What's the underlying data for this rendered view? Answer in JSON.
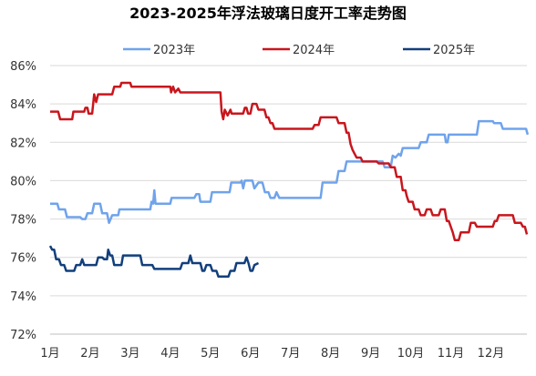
{
  "chart_data": {
    "type": "line",
    "title": "2023-2025年浮法玻璃日度开工率走势图",
    "xlabel": "",
    "ylabel": "",
    "x_categories": [
      "1月",
      "2月",
      "3月",
      "4月",
      "5月",
      "6月",
      "7月",
      "8月",
      "9月",
      "10月",
      "11月",
      "12月"
    ],
    "y_ticks": [
      "72%",
      "74%",
      "76%",
      "78%",
      "80%",
      "82%",
      "84%",
      "86%"
    ],
    "ylim": [
      72,
      86
    ],
    "xlim": [
      1,
      12.9
    ],
    "grid": "horizontal",
    "legend_position": "top",
    "series": [
      {
        "name": "2023年",
        "color": "#6fa3ec",
        "points": [
          [
            1.0,
            78.8
          ],
          [
            1.18,
            78.8
          ],
          [
            1.22,
            78.5
          ],
          [
            1.37,
            78.5
          ],
          [
            1.42,
            78.1
          ],
          [
            1.75,
            78.1
          ],
          [
            1.8,
            78.0
          ],
          [
            1.88,
            78.0
          ],
          [
            1.93,
            78.3
          ],
          [
            2.05,
            78.3
          ],
          [
            2.1,
            78.8
          ],
          [
            2.25,
            78.8
          ],
          [
            2.3,
            78.3
          ],
          [
            2.42,
            78.3
          ],
          [
            2.47,
            77.8
          ],
          [
            2.55,
            78.2
          ],
          [
            2.7,
            78.2
          ],
          [
            2.73,
            78.5
          ],
          [
            3.5,
            78.5
          ],
          [
            3.53,
            78.9
          ],
          [
            3.57,
            78.8
          ],
          [
            3.6,
            79.5
          ],
          [
            3.63,
            78.8
          ],
          [
            4.0,
            78.8
          ],
          [
            4.03,
            79.1
          ],
          [
            4.6,
            79.1
          ],
          [
            4.65,
            79.3
          ],
          [
            4.72,
            79.3
          ],
          [
            4.75,
            78.9
          ],
          [
            5.0,
            78.9
          ],
          [
            5.04,
            79.4
          ],
          [
            5.48,
            79.4
          ],
          [
            5.52,
            79.9
          ],
          [
            5.75,
            79.9
          ],
          [
            5.78,
            80.0
          ],
          [
            5.82,
            79.6
          ],
          [
            5.86,
            80.0
          ],
          [
            6.05,
            80.0
          ],
          [
            6.1,
            79.6
          ],
          [
            6.2,
            79.9
          ],
          [
            6.3,
            79.9
          ],
          [
            6.36,
            79.4
          ],
          [
            6.45,
            79.4
          ],
          [
            6.5,
            79.1
          ],
          [
            6.6,
            79.1
          ],
          [
            6.65,
            79.4
          ],
          [
            6.72,
            79.1
          ],
          [
            7.75,
            79.1
          ],
          [
            7.8,
            79.9
          ],
          [
            8.15,
            79.9
          ],
          [
            8.2,
            80.5
          ],
          [
            8.35,
            80.5
          ],
          [
            8.4,
            81.0
          ],
          [
            9.3,
            81.0
          ],
          [
            9.35,
            80.7
          ],
          [
            9.5,
            80.7
          ],
          [
            9.55,
            81.3
          ],
          [
            9.62,
            81.2
          ],
          [
            9.7,
            81.4
          ],
          [
            9.75,
            81.3
          ],
          [
            9.8,
            81.7
          ],
          [
            10.2,
            81.7
          ],
          [
            10.25,
            82.0
          ],
          [
            10.4,
            82.0
          ],
          [
            10.45,
            82.4
          ],
          [
            10.85,
            82.4
          ],
          [
            10.88,
            82.0
          ],
          [
            10.92,
            82.0
          ],
          [
            10.95,
            82.4
          ],
          [
            11.65,
            82.4
          ],
          [
            11.7,
            83.1
          ],
          [
            12.05,
            83.1
          ],
          [
            12.08,
            83.0
          ],
          [
            12.25,
            83.0
          ],
          [
            12.3,
            82.7
          ],
          [
            12.88,
            82.7
          ],
          [
            12.92,
            82.4
          ]
        ]
      },
      {
        "name": "2024年",
        "color": "#c8161d",
        "points": [
          [
            1.0,
            83.6
          ],
          [
            1.2,
            83.6
          ],
          [
            1.25,
            83.2
          ],
          [
            1.55,
            83.2
          ],
          [
            1.58,
            83.6
          ],
          [
            1.85,
            83.6
          ],
          [
            1.88,
            83.8
          ],
          [
            1.93,
            83.8
          ],
          [
            1.96,
            83.5
          ],
          [
            2.05,
            83.5
          ],
          [
            2.1,
            84.5
          ],
          [
            2.15,
            84.1
          ],
          [
            2.2,
            84.5
          ],
          [
            2.55,
            84.5
          ],
          [
            2.6,
            84.9
          ],
          [
            2.75,
            84.9
          ],
          [
            2.78,
            85.1
          ],
          [
            3.0,
            85.1
          ],
          [
            3.03,
            84.9
          ],
          [
            4.0,
            84.9
          ],
          [
            4.02,
            84.6
          ],
          [
            4.07,
            84.9
          ],
          [
            4.12,
            84.6
          ],
          [
            4.2,
            84.8
          ],
          [
            4.25,
            84.6
          ],
          [
            5.25,
            84.6
          ],
          [
            5.28,
            83.6
          ],
          [
            5.32,
            83.2
          ],
          [
            5.36,
            83.7
          ],
          [
            5.43,
            83.4
          ],
          [
            5.5,
            83.7
          ],
          [
            5.53,
            83.5
          ],
          [
            5.82,
            83.5
          ],
          [
            5.86,
            83.8
          ],
          [
            5.9,
            83.8
          ],
          [
            5.94,
            83.5
          ],
          [
            6.0,
            83.5
          ],
          [
            6.05,
            84.0
          ],
          [
            6.15,
            84.0
          ],
          [
            6.2,
            83.7
          ],
          [
            6.35,
            83.7
          ],
          [
            6.4,
            83.3
          ],
          [
            6.45,
            83.3
          ],
          [
            6.5,
            83.0
          ],
          [
            6.55,
            83.0
          ],
          [
            6.6,
            82.7
          ],
          [
            7.55,
            82.7
          ],
          [
            7.6,
            82.9
          ],
          [
            7.7,
            82.9
          ],
          [
            7.75,
            83.3
          ],
          [
            8.15,
            83.3
          ],
          [
            8.2,
            83.0
          ],
          [
            8.35,
            83.0
          ],
          [
            8.4,
            82.5
          ],
          [
            8.45,
            82.5
          ],
          [
            8.5,
            81.9
          ],
          [
            8.55,
            81.6
          ],
          [
            8.6,
            81.4
          ],
          [
            8.65,
            81.2
          ],
          [
            8.75,
            81.2
          ],
          [
            8.8,
            81.0
          ],
          [
            9.15,
            81.0
          ],
          [
            9.2,
            80.9
          ],
          [
            9.45,
            80.9
          ],
          [
            9.5,
            80.7
          ],
          [
            9.6,
            80.7
          ],
          [
            9.65,
            80.2
          ],
          [
            9.75,
            80.2
          ],
          [
            9.8,
            79.5
          ],
          [
            9.87,
            79.5
          ],
          [
            9.9,
            79.2
          ],
          [
            9.95,
            78.9
          ],
          [
            10.05,
            78.9
          ],
          [
            10.1,
            78.5
          ],
          [
            10.2,
            78.5
          ],
          [
            10.25,
            78.2
          ],
          [
            10.35,
            78.2
          ],
          [
            10.4,
            78.5
          ],
          [
            10.5,
            78.5
          ],
          [
            10.55,
            78.2
          ],
          [
            10.7,
            78.2
          ],
          [
            10.75,
            78.5
          ],
          [
            10.85,
            78.5
          ],
          [
            10.9,
            77.9
          ],
          [
            10.95,
            77.9
          ],
          [
            11.0,
            77.6
          ],
          [
            11.05,
            77.3
          ],
          [
            11.1,
            76.9
          ],
          [
            11.2,
            76.9
          ],
          [
            11.25,
            77.3
          ],
          [
            11.45,
            77.3
          ],
          [
            11.5,
            77.8
          ],
          [
            11.6,
            77.8
          ],
          [
            11.65,
            77.6
          ],
          [
            12.05,
            77.6
          ],
          [
            12.1,
            77.9
          ],
          [
            12.15,
            77.9
          ],
          [
            12.2,
            78.2
          ],
          [
            12.55,
            78.2
          ],
          [
            12.6,
            77.8
          ],
          [
            12.75,
            77.8
          ],
          [
            12.8,
            77.6
          ],
          [
            12.85,
            77.6
          ],
          [
            12.9,
            77.2
          ]
        ]
      },
      {
        "name": "2025年",
        "color": "#123f7c",
        "points": [
          [
            1.0,
            76.6
          ],
          [
            1.05,
            76.4
          ],
          [
            1.1,
            76.4
          ],
          [
            1.15,
            75.9
          ],
          [
            1.22,
            75.9
          ],
          [
            1.27,
            75.6
          ],
          [
            1.35,
            75.6
          ],
          [
            1.4,
            75.3
          ],
          [
            1.6,
            75.3
          ],
          [
            1.65,
            75.6
          ],
          [
            1.75,
            75.6
          ],
          [
            1.8,
            75.9
          ],
          [
            1.85,
            75.6
          ],
          [
            2.15,
            75.6
          ],
          [
            2.2,
            76.0
          ],
          [
            2.3,
            76.0
          ],
          [
            2.35,
            75.9
          ],
          [
            2.42,
            75.9
          ],
          [
            2.45,
            76.4
          ],
          [
            2.5,
            76.1
          ],
          [
            2.55,
            76.1
          ],
          [
            2.6,
            75.6
          ],
          [
            2.78,
            75.6
          ],
          [
            2.82,
            76.1
          ],
          [
            3.25,
            76.1
          ],
          [
            3.3,
            75.6
          ],
          [
            3.55,
            75.6
          ],
          [
            3.6,
            75.4
          ],
          [
            4.25,
            75.4
          ],
          [
            4.3,
            75.7
          ],
          [
            4.45,
            75.7
          ],
          [
            4.5,
            76.1
          ],
          [
            4.55,
            75.7
          ],
          [
            4.75,
            75.7
          ],
          [
            4.8,
            75.3
          ],
          [
            4.85,
            75.3
          ],
          [
            4.9,
            75.6
          ],
          [
            5.0,
            75.6
          ],
          [
            5.05,
            75.3
          ],
          [
            5.15,
            75.3
          ],
          [
            5.2,
            75.0
          ],
          [
            5.45,
            75.0
          ],
          [
            5.5,
            75.3
          ],
          [
            5.6,
            75.3
          ],
          [
            5.65,
            75.7
          ],
          [
            5.85,
            75.7
          ],
          [
            5.9,
            76.0
          ],
          [
            5.95,
            75.7
          ],
          [
            6.0,
            75.3
          ],
          [
            6.05,
            75.3
          ],
          [
            6.1,
            75.6
          ],
          [
            6.2,
            75.7
          ]
        ]
      }
    ]
  }
}
